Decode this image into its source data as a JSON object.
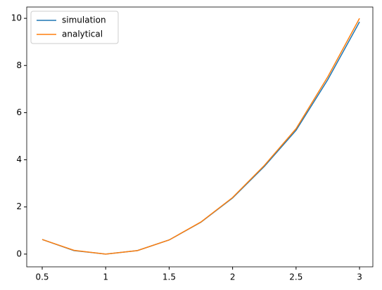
{
  "chart_data": {
    "type": "line",
    "x": [
      0.5,
      0.75,
      1.0,
      1.25,
      1.5,
      1.75,
      2.0,
      2.25,
      2.5,
      2.75,
      3.0
    ],
    "series": [
      {
        "name": "simulation",
        "color": "#1f77b4",
        "values": [
          0.62,
          0.15,
          0,
          0.15,
          0.6,
          1.35,
          2.38,
          3.72,
          5.25,
          7.4,
          9.85
        ]
      },
      {
        "name": "analytical",
        "color": "#ff7f0e",
        "values": [
          0.62,
          0.16,
          0,
          0.15,
          0.6,
          1.36,
          2.4,
          3.76,
          5.32,
          7.52,
          10.0
        ]
      }
    ],
    "xlim": [
      0.378,
      3.105
    ],
    "ylim": [
      -0.54,
      10.48
    ],
    "xticks": [
      0.5,
      1.0,
      1.5,
      2.0,
      2.5,
      3.0
    ],
    "yticks": [
      0,
      2,
      4,
      6,
      8,
      10
    ],
    "legend": "upper-left"
  }
}
